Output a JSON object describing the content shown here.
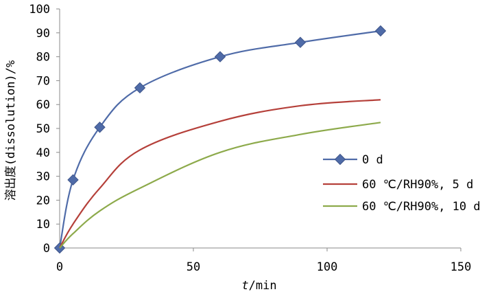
{
  "chart_data": {
    "type": "line",
    "xlabel_italic": "t",
    "xlabel_rest": "/min",
    "ylabel": "溶出度(dissolution)/%",
    "xlim": [
      0,
      150
    ],
    "ylim": [
      0,
      100
    ],
    "xticks": [
      0,
      50,
      100,
      150
    ],
    "yticks": [
      0,
      10,
      20,
      30,
      40,
      50,
      60,
      70,
      80,
      90,
      100
    ],
    "grid": false,
    "legend_position": "right",
    "series": [
      {
        "name": "0 d",
        "color": "#4F6BA8",
        "marker": "diamond",
        "x": [
          0,
          5,
          15,
          30,
          60,
          90,
          120
        ],
        "y": [
          0,
          28.5,
          50.5,
          67,
          80,
          86,
          90.8
        ]
      },
      {
        "name": "60 ℃/RH90%, 5 d",
        "color": "#B5403A",
        "marker": "none",
        "x": [
          0,
          5,
          15,
          30,
          60,
          90,
          120
        ],
        "y": [
          0,
          10,
          25,
          41,
          53,
          59.5,
          62
        ]
      },
      {
        "name": "60 ℃/RH90%, 10 d",
        "color": "#8DAA4B",
        "marker": "none",
        "x": [
          0,
          5,
          15,
          30,
          60,
          90,
          120
        ],
        "y": [
          0,
          6,
          15.5,
          25,
          40,
          47.5,
          52.5
        ]
      }
    ]
  }
}
